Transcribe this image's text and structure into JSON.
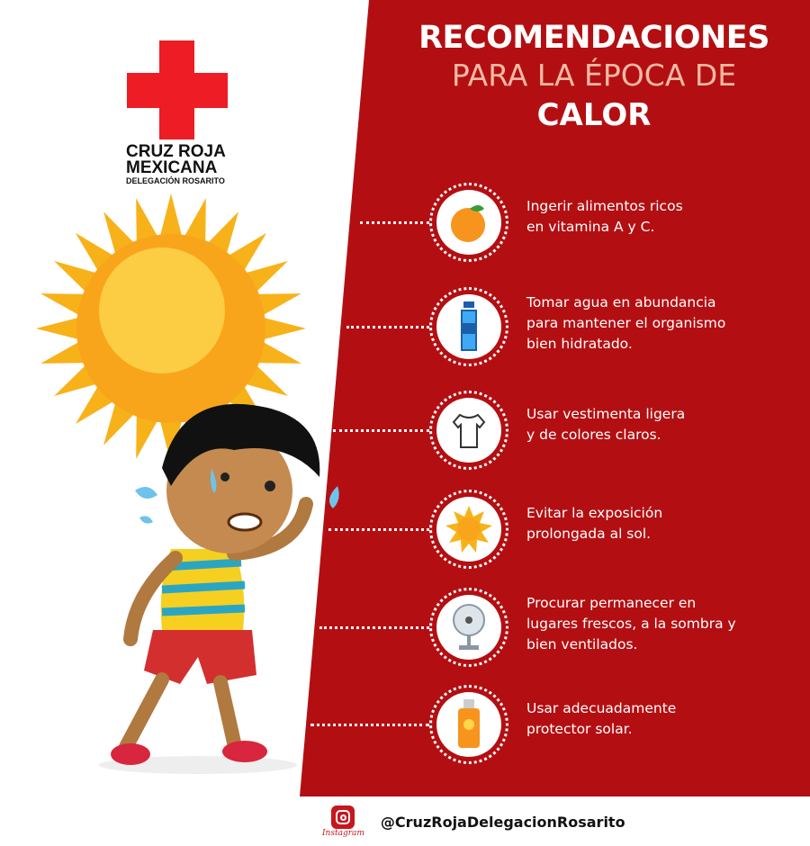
{
  "logo": {
    "line1": "CRUZ ROJA",
    "line2": "MEXICANA",
    "line3": "DELEGACIÓN ROSARITO"
  },
  "title": {
    "line1": "RECOMENDACIONES",
    "line2": "PARA LA ÉPOCA DE",
    "line3": "CALOR"
  },
  "colors": {
    "panel": "#b30f12",
    "cross": "#ee1c24",
    "subtitle": "#f3b9a5"
  },
  "items": [
    {
      "icon": "orange-icon",
      "text": "Ingerir alimentos ricos\nen vitamina A y C."
    },
    {
      "icon": "water-bottle-icon",
      "text": "Tomar agua en abundancia\npara mantener el organismo\nbien hidratado."
    },
    {
      "icon": "tshirt-icon",
      "text": "Usar vestimenta ligera\ny de colores claros."
    },
    {
      "icon": "sun-icon",
      "text": "Evitar la exposición\nprolongada al sol."
    },
    {
      "icon": "fan-icon",
      "text": "Procurar permanecer en\nlugares frescos, a la sombra y\nbien ventilados."
    },
    {
      "icon": "sunscreen-icon",
      "text": "Usar adecuadamente\nprotector solar."
    }
  ],
  "footer": {
    "instagram_label": "Instagram",
    "handle": "@CruzRojaDelegacionRosarito"
  }
}
